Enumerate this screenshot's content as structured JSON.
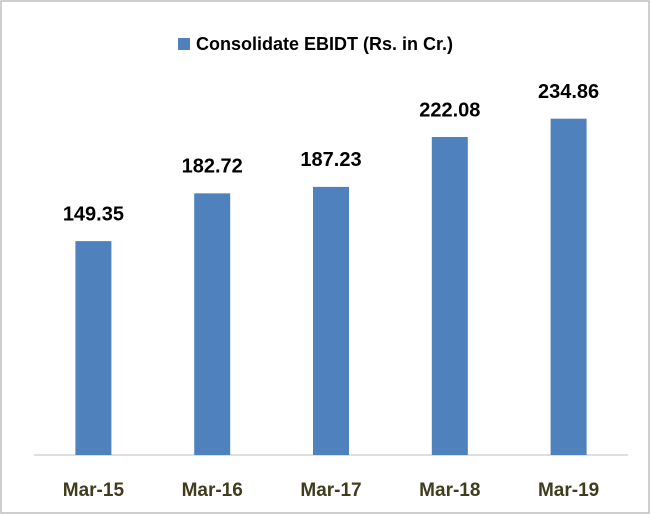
{
  "chart_data": {
    "type": "bar",
    "categories": [
      "Mar-15",
      "Mar-16",
      "Mar-17",
      "Mar-18",
      "Mar-19"
    ],
    "series": [
      {
        "name": "Consolidate EBIDT (Rs. in Cr.)",
        "color": "#4f81bd",
        "values": [
          149.35,
          182.72,
          187.23,
          222.08,
          234.86
        ]
      }
    ],
    "ylim": [
      0,
      250
    ],
    "legend": "top"
  }
}
